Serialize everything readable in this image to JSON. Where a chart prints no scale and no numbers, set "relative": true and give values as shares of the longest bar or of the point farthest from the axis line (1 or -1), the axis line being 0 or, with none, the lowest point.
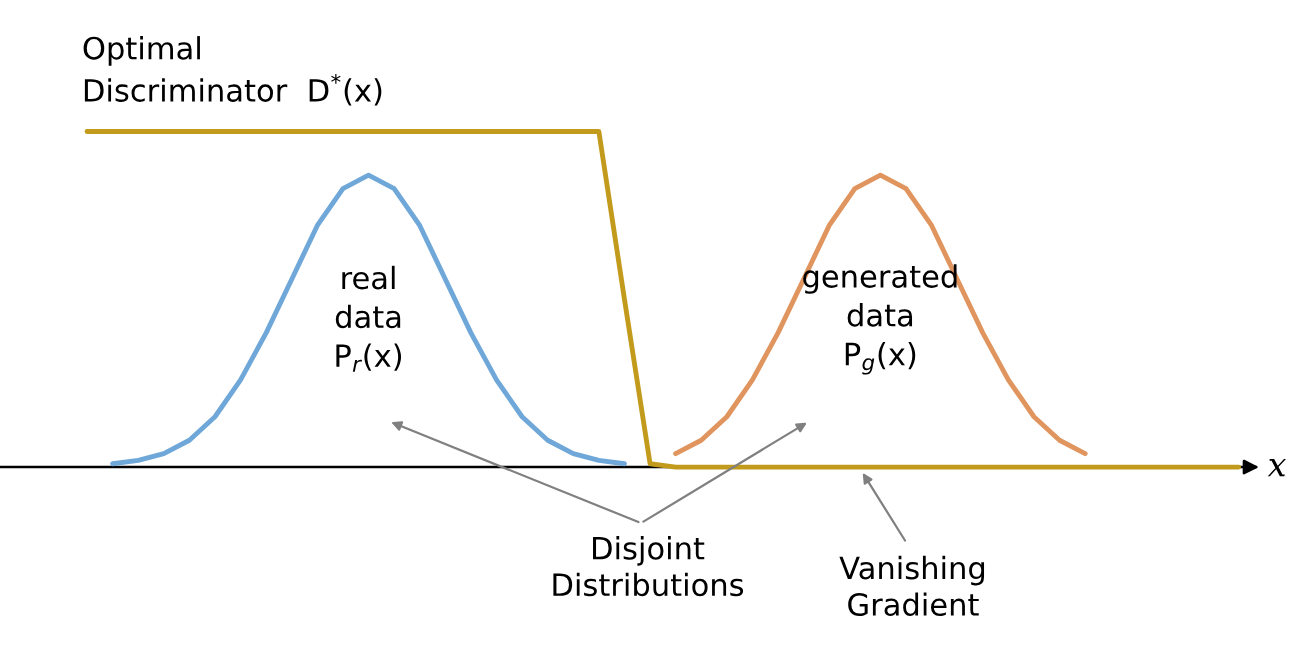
{
  "chart_data": {
    "type": "line",
    "relative": true,
    "xlabel": "x",
    "marker": "none",
    "line_style": "solid",
    "categories": [
      null,
      null,
      null,
      null,
      null,
      null,
      null,
      null,
      null,
      null,
      null,
      null,
      null,
      null,
      null,
      null,
      null,
      null,
      null,
      null,
      null,
      null,
      null,
      null,
      null,
      null,
      null,
      null,
      null,
      null,
      null,
      null,
      null,
      null,
      null,
      null,
      null,
      null,
      null,
      null,
      null,
      null,
      null,
      null,
      null,
      null
    ],
    "series": [
      {
        "name": "real\ndata\nP$_{r}$(x)",
        "color": "#6fa8d8",
        "values": [
          null,
          0.01,
          0.02,
          0.04,
          0.08,
          0.15,
          0.26,
          0.4,
          0.56,
          0.72,
          0.83,
          0.87,
          0.83,
          0.72,
          0.56,
          0.4,
          0.26,
          0.15,
          0.08,
          0.04,
          0.02,
          0.01,
          null,
          null,
          null,
          null,
          null,
          null,
          null,
          null,
          null,
          null,
          null,
          null,
          null,
          null,
          null,
          null,
          null,
          null,
          null,
          null,
          null,
          null,
          null,
          null
        ]
      },
      {
        "name": "generated\ndata\nP$_{g}$(x)",
        "color": "#e0955e",
        "values": [
          null,
          null,
          null,
          null,
          null,
          null,
          null,
          null,
          null,
          null,
          null,
          null,
          null,
          null,
          null,
          null,
          null,
          null,
          null,
          null,
          null,
          null,
          null,
          0.04,
          0.08,
          0.15,
          0.26,
          0.4,
          0.56,
          0.72,
          0.83,
          0.87,
          0.83,
          0.72,
          0.56,
          0.4,
          0.26,
          0.15,
          0.08,
          0.04,
          null,
          null,
          null,
          null,
          null,
          null
        ]
      },
      {
        "name": "Optimal\nDiscriminator  D$^{*}$(x)",
        "color": "#c29b1c",
        "values": [
          1,
          1,
          1,
          1,
          1,
          1,
          1,
          1,
          1,
          1,
          1,
          1,
          1,
          1,
          1,
          1,
          1,
          1,
          1,
          1,
          1,
          0.5,
          0.01,
          0,
          0,
          0,
          0,
          0,
          0,
          0,
          0,
          0,
          0,
          0,
          0,
          0,
          0,
          0,
          0,
          0,
          0,
          0,
          0,
          0,
          0,
          0
        ]
      }
    ],
    "annotations": [
      "Disjoint\nDistributions",
      "Vanishing\nGradient"
    ]
  }
}
